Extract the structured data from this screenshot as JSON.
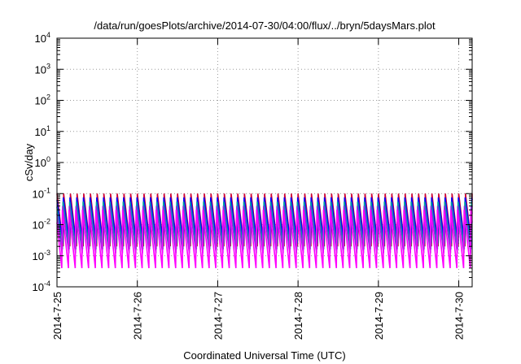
{
  "chart_data": {
    "type": "line",
    "title": "/data/run/goesPlots/archive/2014-07-30/04:00/flux/../bryn/5daysMars.plot",
    "xlabel": "Coordinated Universal Time (UTC)",
    "ylabel": "cSv/day",
    "y_scale": "log",
    "ylim": [
      0.0001,
      10000
    ],
    "y_ticks": [
      {
        "base": "10",
        "exp": "-4",
        "value": 0.0001
      },
      {
        "base": "10",
        "exp": "-3",
        "value": 0.001
      },
      {
        "base": "10",
        "exp": "-2",
        "value": 0.01
      },
      {
        "base": "10",
        "exp": "-1",
        "value": 0.1
      },
      {
        "base": "10",
        "exp": "0",
        "value": 1
      },
      {
        "base": "10",
        "exp": "1",
        "value": 10
      },
      {
        "base": "10",
        "exp": "2",
        "value": 100
      },
      {
        "base": "10",
        "exp": "3",
        "value": 1000
      },
      {
        "base": "10",
        "exp": "4",
        "value": 10000
      }
    ],
    "x_ticks": [
      "2014-7-25",
      "2014-7-26",
      "2014-7-27",
      "2014-7-28",
      "2014-7-29",
      "2014-7-30"
    ],
    "xlim": [
      "2014-07-25 00:00",
      "2014-07-30 04:00"
    ],
    "grid": true,
    "legend": "none",
    "sawtooth_period_hours": 2.0,
    "series": [
      {
        "color": "#cc0033",
        "peak": 0.1,
        "trough": 0.002
      },
      {
        "color": "#0000ff",
        "peak": 0.075,
        "trough": 0.0025
      },
      {
        "color": "#00a0a0",
        "peak": 0.055,
        "trough": 0.0016
      },
      {
        "color": "#8a2be2",
        "peak": 0.04,
        "trough": 0.0012
      },
      {
        "color": "#ff00ff",
        "peak": 0.03,
        "trough": 0.0004
      }
    ]
  }
}
